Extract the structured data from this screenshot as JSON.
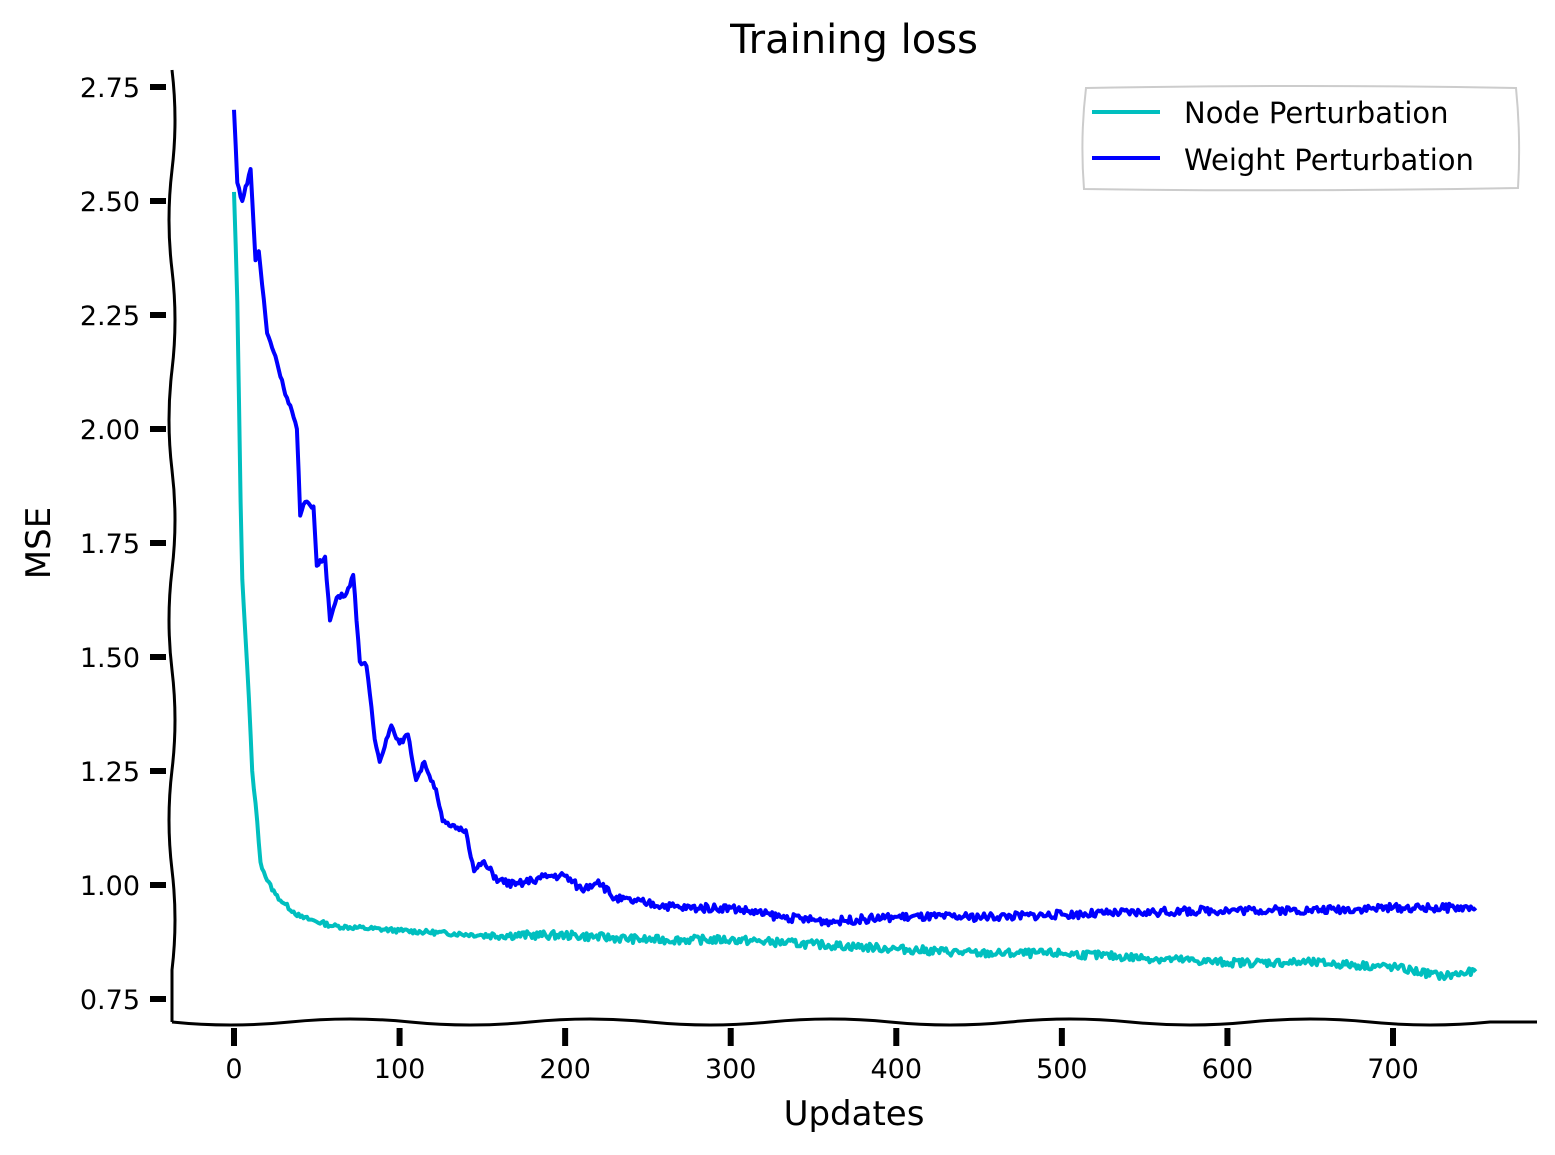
{
  "chart_data": {
    "type": "line",
    "title": "Training loss",
    "xlabel": "Updates",
    "ylabel": "MSE",
    "xlim": [
      -37,
      785
    ],
    "ylim": [
      0.7,
      2.78
    ],
    "xticks": [
      0,
      100,
      200,
      300,
      400,
      500,
      600,
      700
    ],
    "yticks": [
      0.75,
      1.0,
      1.25,
      1.5,
      1.75,
      2.0,
      2.25,
      2.5,
      2.75
    ],
    "xtick_labels": [
      "0",
      "100",
      "200",
      "300",
      "400",
      "500",
      "600",
      "700"
    ],
    "ytick_labels": [
      "0.75",
      "1.00",
      "1.25",
      "1.50",
      "1.75",
      "2.00",
      "2.25",
      "2.50",
      "2.75"
    ],
    "grid": false,
    "legend_position": "top-right",
    "series": [
      {
        "name": "Node Perturbation",
        "color": "#00bfbf",
        "x": [
          0,
          2,
          3,
          4,
          5,
          7,
          9,
          11,
          14,
          16,
          20,
          25,
          30,
          40,
          60,
          100,
          150,
          200,
          250,
          300,
          350,
          400,
          450,
          500,
          550,
          600,
          650,
          700,
          730,
          750
        ],
        "y": [
          2.52,
          2.28,
          2.06,
          1.84,
          1.67,
          1.54,
          1.41,
          1.25,
          1.14,
          1.05,
          1.01,
          0.98,
          0.96,
          0.93,
          0.91,
          0.9,
          0.89,
          0.89,
          0.88,
          0.88,
          0.87,
          0.86,
          0.85,
          0.85,
          0.84,
          0.83,
          0.83,
          0.82,
          0.8,
          0.81
        ]
      },
      {
        "name": "Weight Perturbation",
        "color": "#0000ff",
        "x": [
          0,
          2,
          5,
          10,
          13,
          15,
          20,
          25,
          30,
          35,
          38,
          40,
          43,
          48,
          50,
          55,
          58,
          62,
          68,
          72,
          76,
          80,
          82,
          85,
          88,
          92,
          95,
          100,
          105,
          110,
          115,
          118,
          122,
          126,
          130,
          140,
          145,
          150,
          160,
          170,
          180,
          190,
          200,
          210,
          220,
          230,
          250,
          270,
          300,
          330,
          360,
          400,
          450,
          500,
          550,
          600,
          650,
          700,
          750
        ],
        "y": [
          2.7,
          2.54,
          2.5,
          2.57,
          2.37,
          2.39,
          2.21,
          2.16,
          2.09,
          2.04,
          2.0,
          1.81,
          1.84,
          1.83,
          1.7,
          1.72,
          1.58,
          1.63,
          1.64,
          1.68,
          1.49,
          1.48,
          1.42,
          1.32,
          1.27,
          1.32,
          1.35,
          1.31,
          1.33,
          1.23,
          1.27,
          1.24,
          1.21,
          1.14,
          1.13,
          1.12,
          1.03,
          1.05,
          1.01,
          1.0,
          1.01,
          1.02,
          1.02,
          0.99,
          1.01,
          0.97,
          0.96,
          0.95,
          0.95,
          0.93,
          0.92,
          0.93,
          0.93,
          0.935,
          0.94,
          0.945,
          0.945,
          0.95,
          0.95
        ]
      }
    ]
  }
}
